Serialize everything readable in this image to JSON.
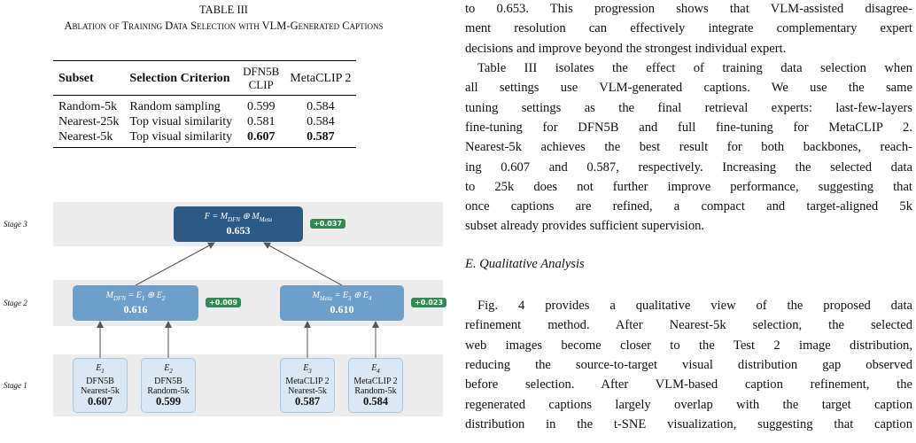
{
  "table": {
    "label": "TABLE III",
    "caption": "Ablation of Training Data Selection with VLM-Generated Captions",
    "headers": [
      "Subset",
      "Selection Criterion",
      "DFN5B\nCLIP",
      "MetaCLIP 2"
    ],
    "rows": [
      [
        "Random-5k",
        "Random sampling",
        "0.599",
        "0.584"
      ],
      [
        "Nearest-25k",
        "Top visual similarity",
        "0.581",
        "0.584"
      ],
      [
        "Nearest-5k",
        "Top visual similarity",
        "0.607",
        "0.587"
      ]
    ]
  },
  "figure": {
    "stages": [
      "Stage 3",
      "Stage 2",
      "Stage 1"
    ],
    "final": {
      "formula": [
        {
          "text": "F = M"
        },
        {
          "sub": "DFN"
        },
        {
          "text": " ⊕ M"
        },
        {
          "sub": "Meta"
        }
      ],
      "score": "0.653",
      "gain": "+0.037"
    },
    "fusions": [
      {
        "formula": [
          {
            "text": "M"
          },
          {
            "sub": "DFN"
          },
          {
            "text": " = E"
          },
          {
            "sub": "1"
          },
          {
            "text": " ⊕ E"
          },
          {
            "sub": "2"
          }
        ],
        "score": "0.616",
        "gain": "+0.009"
      },
      {
        "formula": [
          {
            "text": "M"
          },
          {
            "sub": "Meta"
          },
          {
            "text": " = E"
          },
          {
            "sub": "3"
          },
          {
            "text": " ⊕ E"
          },
          {
            "sub": "4"
          }
        ],
        "score": "0.610",
        "gain": "+0.023"
      }
    ],
    "experts": [
      {
        "formula": [
          {
            "text": "E"
          },
          {
            "sub": "1"
          }
        ],
        "lines": [
          "DFN5B",
          "Nearest-5k"
        ],
        "score": "0.607"
      },
      {
        "formula": [
          {
            "text": "E"
          },
          {
            "sub": "2"
          }
        ],
        "lines": [
          "DFN5B",
          "Random-5k"
        ],
        "score": "0.599"
      },
      {
        "formula": [
          {
            "text": "E"
          },
          {
            "sub": "3"
          }
        ],
        "lines": [
          "MetaCLIP 2",
          "Nearest-5k"
        ],
        "score": "0.587"
      },
      {
        "formula": [
          {
            "text": "E"
          },
          {
            "sub": "4"
          }
        ],
        "lines": [
          "MetaCLIP 2",
          "Random-5k"
        ],
        "score": "0.584"
      }
    ]
  },
  "text": {
    "paragraph_1": [
      "to 0.653. This progression shows that VLM-assisted disagree-",
      "ment resolution can effectively integrate complementary expert",
      "decisions and improve beyond the strongest individual expert."
    ],
    "paragraph_2": [
      "Table III isolates the effect of training data selection when",
      "all settings use VLM-generated captions. We use the same",
      "tuning settings as the final retrieval experts: last-few-layers",
      "fine-tuning for DFN5B and full fine-tuning for MetaCLIP 2.",
      "Nearest-5k achieves the best result for both backbones, reach-",
      "ing 0.607 and 0.587, respectively. Increasing the selected data",
      "to 25k does not further improve performance, suggesting that",
      "once captions are refined, a compact and target-aligned 5k",
      "subset already provides sufficient supervision."
    ],
    "heading": "E. Qualitative Analysis",
    "paragraph_3": [
      "Fig. 4 provides a qualitative view of the proposed data",
      "refinement method. After Nearest-5k selection, the selected",
      "web images become closer to the Test 2 image distribution,",
      "reducing the source-to-target visual distribution gap observed",
      "before selection. After VLM-based caption refinement, the",
      "regenerated captions largely overlap with the target caption",
      "distribution in the t-SNE visualization, suggesting that caption"
    ]
  }
}
